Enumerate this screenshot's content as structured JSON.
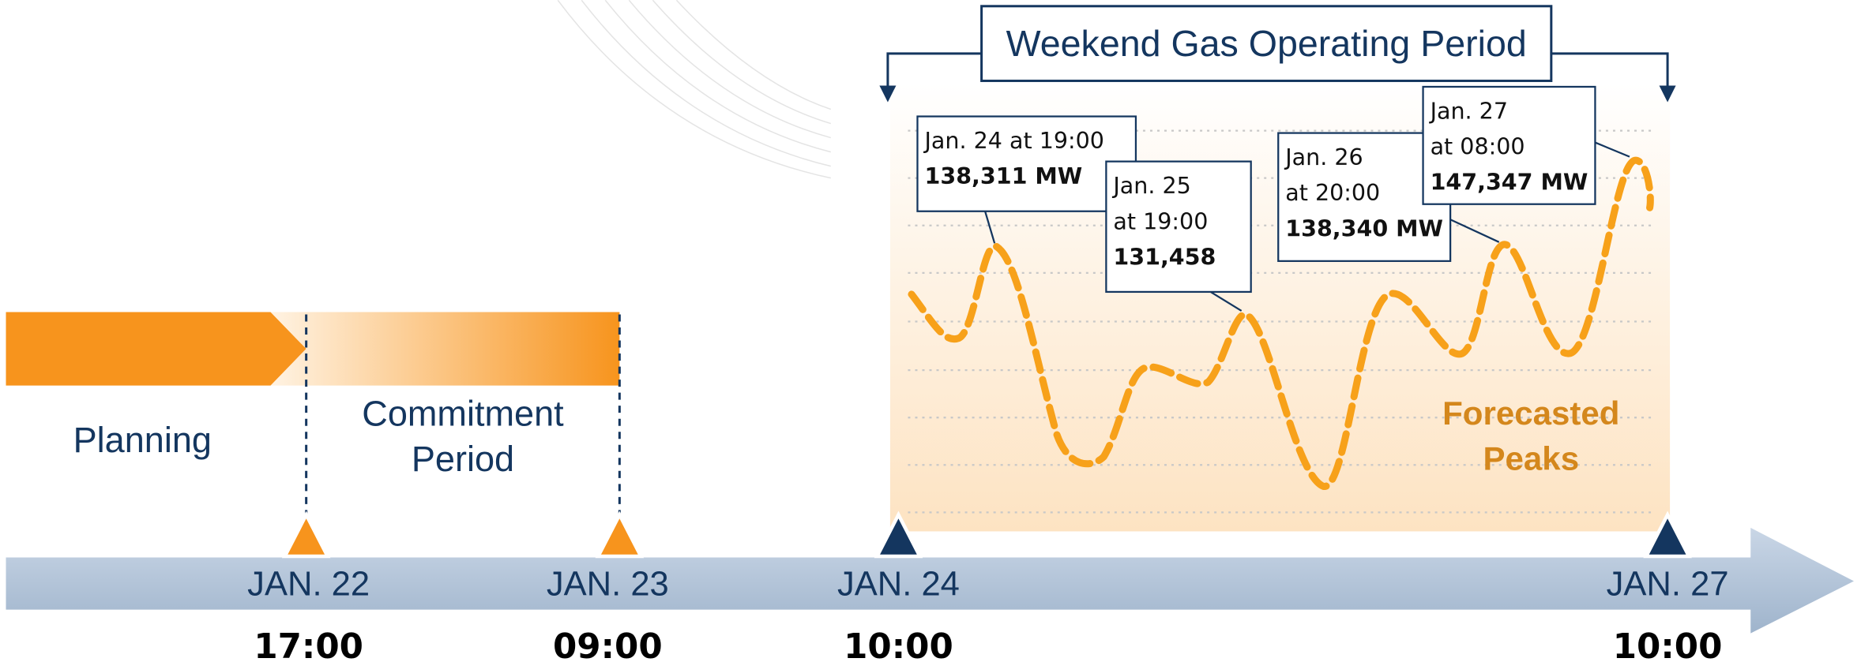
{
  "title": "Weekend Gas Operating Period",
  "phases": [
    {
      "lines": [
        "Planning"
      ]
    },
    {
      "lines": [
        "Commitment",
        "Period"
      ]
    }
  ],
  "milestones": [
    {
      "date": "JAN. 22",
      "time": "17:00"
    },
    {
      "date": "JAN. 23",
      "time": "09:00"
    },
    {
      "date": "JAN. 24",
      "time": "10:00"
    },
    {
      "date": "JAN. 27",
      "time": "10:00"
    }
  ],
  "callouts": [
    {
      "lines": [
        "Jan. 24 at 19:00"
      ],
      "value": "138,311 MW"
    },
    {
      "lines": [
        "Jan. 25",
        "at 19:00"
      ],
      "value": "131,458"
    },
    {
      "lines": [
        "Jan. 26",
        "at 20:00"
      ],
      "value": "138,340 MW"
    },
    {
      "lines": [
        "Jan. 27",
        "at 08:00"
      ],
      "value": "147,347 MW"
    }
  ],
  "forecast_label": [
    "Forecasted",
    "Peaks"
  ]
}
